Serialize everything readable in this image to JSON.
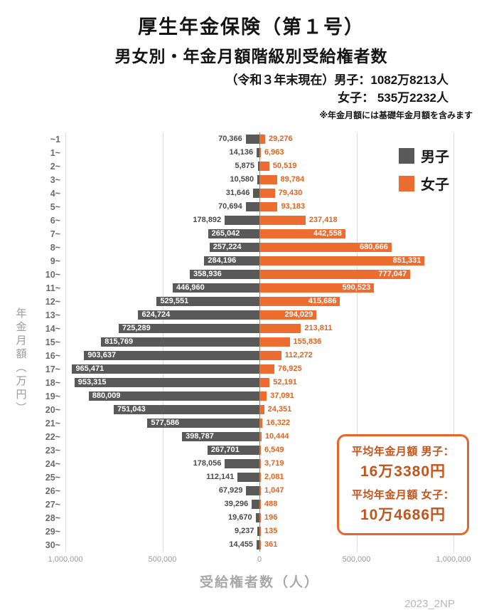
{
  "header": {
    "title": "厚生年金保険（第１号）",
    "subtitle": "男女別・年金月額階級別受給権者数",
    "line1": "（令和３年末現在）男子：1082万8213人",
    "line2": "女子： 535万2232人",
    "note": "※年金月額には基礎年金月額を含みます"
  },
  "legend": {
    "male": "男子",
    "female": "女子"
  },
  "annotation": {
    "male_label": "平均年金月額 男子：",
    "male_value": "16万3380円",
    "female_label": "平均年金月額 女子：",
    "female_value": "10万4686円"
  },
  "footer": {
    "watermark": "2023_2NP"
  },
  "colors": {
    "male": "#595959",
    "female": "#ed6c30",
    "annotation": "#c2551c",
    "grid": "#dedede"
  },
  "chart_data": {
    "type": "bar",
    "variant": "population-pyramid",
    "title": "厚生年金保険（第１号） 男女別・年金月額階級別受給権者数",
    "xlabel": "受給権者数（人）",
    "ylabel": "年金月額（万円）",
    "xlim": [
      -1000000,
      1000000
    ],
    "x_tick_labels": [
      "1,000,000",
      "500,000",
      "0",
      "500,000",
      "1,000,000"
    ],
    "grid": true,
    "legend_position": "upper-right",
    "categories": [
      "~1",
      "1~",
      "2~",
      "3~",
      "4~",
      "5~",
      "6~",
      "7~",
      "8~",
      "9~",
      "10~",
      "11~",
      "12~",
      "13~",
      "14~",
      "15~",
      "16~",
      "17~",
      "18~",
      "19~",
      "20~",
      "21~",
      "22~",
      "23~",
      "24~",
      "25~",
      "26~",
      "27~",
      "28~",
      "29~",
      "30~"
    ],
    "series": [
      {
        "name": "男子",
        "color": "#595959",
        "values": [
          70366,
          14136,
          5875,
          10580,
          31646,
          70694,
          178892,
          265042,
          257224,
          284196,
          358936,
          446960,
          529551,
          624724,
          725289,
          815769,
          903637,
          965471,
          953315,
          880009,
          751043,
          577586,
          398787,
          267701,
          178056,
          112141,
          67929,
          39296,
          19670,
          9237,
          14455
        ]
      },
      {
        "name": "女子",
        "color": "#ed6c30",
        "values": [
          29276,
          6963,
          50519,
          89784,
          79430,
          93183,
          237418,
          442558,
          680666,
          851331,
          777047,
          590523,
          415686,
          294029,
          213811,
          155836,
          112272,
          76925,
          52191,
          37091,
          24351,
          16322,
          10444,
          6549,
          3719,
          2081,
          1047,
          488,
          196,
          135,
          361
        ]
      }
    ]
  }
}
